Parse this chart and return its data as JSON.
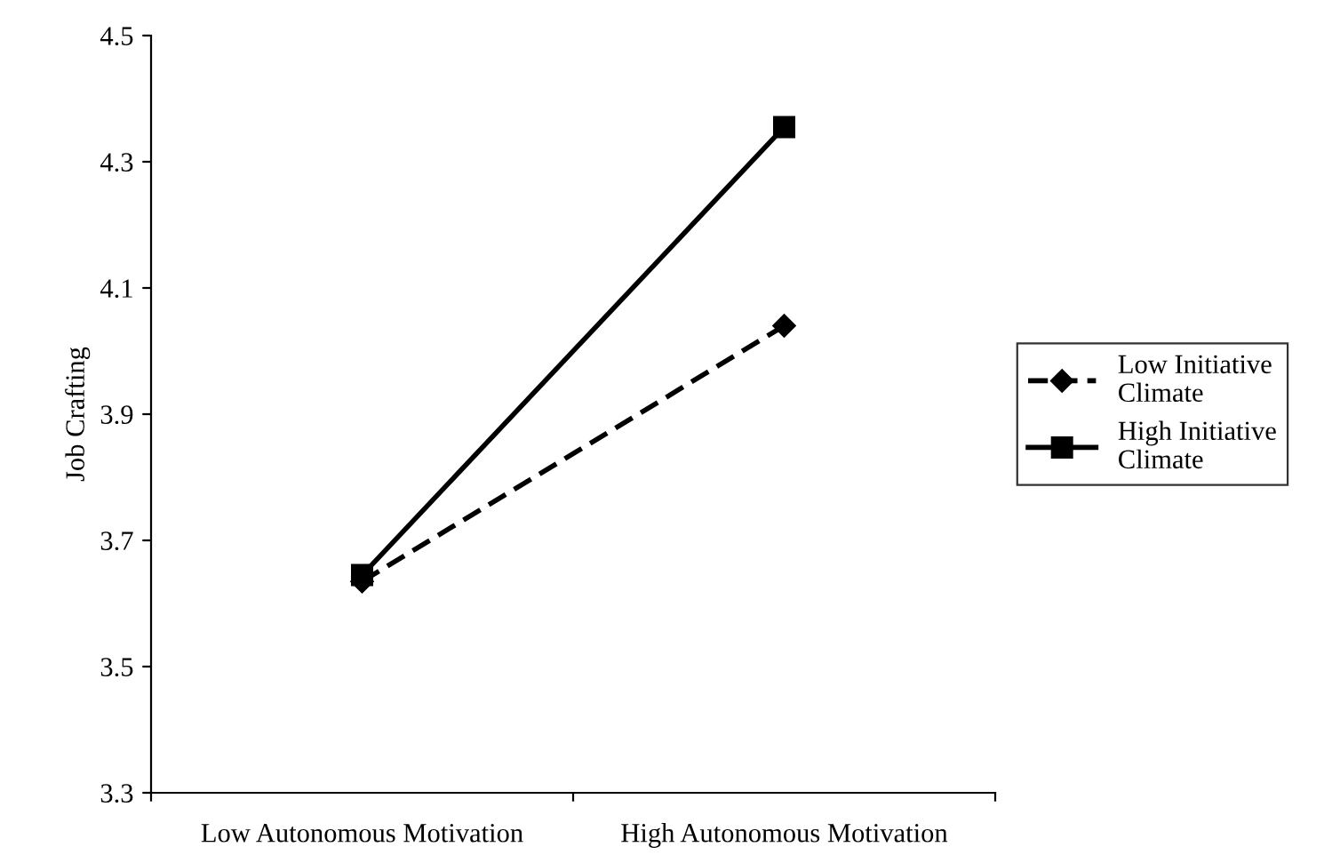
{
  "chart_data": {
    "type": "line",
    "ylabel": "Job Crafting",
    "categories": [
      "Low Autonomous Motivation",
      "High Autonomous Motivation"
    ],
    "series": [
      {
        "name": "Low Initiative Climate",
        "color": "#000000",
        "values": [
          3.635,
          4.04
        ],
        "marker": "diamond",
        "line_style": "dashed"
      },
      {
        "name": "High Initiative Climate",
        "color": "#000000",
        "values": [
          3.645,
          4.355
        ],
        "marker": "square",
        "line_style": "solid"
      }
    ],
    "ylim": [
      3.3,
      4.5
    ],
    "yticks": [
      3.3,
      3.5,
      3.7,
      3.9,
      4.1,
      4.3,
      4.5
    ],
    "grid": false,
    "legend": "right"
  }
}
